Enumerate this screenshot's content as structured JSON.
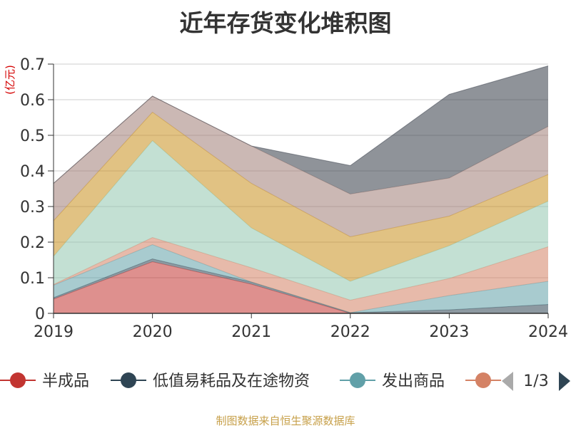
{
  "chart_data": {
    "type": "area",
    "stacked": true,
    "title": "近年存货变化堆积图",
    "y_unit": "(亿元)",
    "x": [
      "2019",
      "2020",
      "2021",
      "2022",
      "2023",
      "2024"
    ],
    "ylim": [
      0,
      0.7
    ],
    "yticks": [
      "0",
      "0.1",
      "0.2",
      "0.3",
      "0.4",
      "0.5",
      "0.6",
      "0.7"
    ],
    "grid": true,
    "legend_position": "bottom",
    "series": [
      {
        "name": "半成品",
        "color": "#c23531",
        "values": [
          0.04,
          0.145,
          0.082,
          0.0,
          0.0,
          0.0
        ]
      },
      {
        "name": "低值易耗品及在途物资",
        "color": "#2f4554",
        "values": [
          0.004,
          0.008,
          0.006,
          0.002,
          0.01,
          0.025
        ]
      },
      {
        "name": "发出商品",
        "color": "#61a0a8",
        "values": [
          0.035,
          0.04,
          0.0,
          0.0,
          0.04,
          0.065
        ]
      },
      {
        "name": "",
        "color": "#d48265",
        "values": [
          0.002,
          0.02,
          0.04,
          0.035,
          0.048,
          0.097
        ]
      },
      {
        "name": "",
        "color": "#91c7ae",
        "values": [
          0.079,
          0.272,
          0.112,
          0.053,
          0.092,
          0.128
        ]
      },
      {
        "name": "",
        "color": "#c98f1d",
        "values": [
          0.1,
          0.08,
          0.125,
          0.125,
          0.083,
          0.075
        ]
      },
      {
        "name": "",
        "color": "#a07e76",
        "values": [
          0.105,
          0.045,
          0.105,
          0.12,
          0.107,
          0.135
        ]
      },
      {
        "name": "",
        "color": "#333a45",
        "values": [
          0.0,
          0.0,
          0.0,
          0.08,
          0.235,
          0.17
        ]
      }
    ]
  },
  "legend": {
    "visible_items": [
      {
        "label": "半成品",
        "color": "#c23531"
      },
      {
        "label": "低值易耗品及在途物资",
        "color": "#2f4554"
      },
      {
        "label": "发出商品",
        "color": "#61a0a8"
      },
      {
        "label": "",
        "color": "#d48265"
      }
    ],
    "page": "1/3"
  },
  "footer": {
    "source": "制图数据来自恒生聚源数据库"
  }
}
